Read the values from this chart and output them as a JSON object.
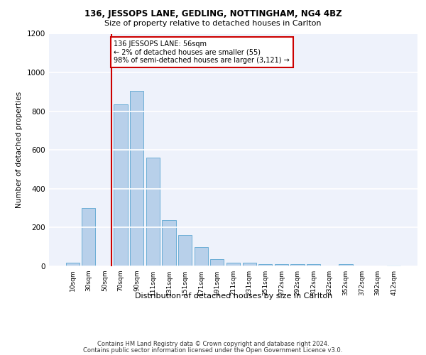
{
  "title1": "136, JESSOPS LANE, GEDLING, NOTTINGHAM, NG4 4BZ",
  "title2": "Size of property relative to detached houses in Carlton",
  "xlabel": "Distribution of detached houses by size in Carlton",
  "ylabel": "Number of detached properties",
  "categories": [
    "10sqm",
    "30sqm",
    "50sqm",
    "70sqm",
    "90sqm",
    "111sqm",
    "131sqm",
    "151sqm",
    "171sqm",
    "191sqm",
    "211sqm",
    "231sqm",
    "251sqm",
    "272sqm",
    "292sqm",
    "312sqm",
    "332sqm",
    "352sqm",
    "372sqm",
    "392sqm",
    "412sqm"
  ],
  "values": [
    20,
    300,
    0,
    835,
    905,
    560,
    240,
    160,
    100,
    35,
    20,
    20,
    10,
    10,
    10,
    10,
    0,
    10,
    0,
    0,
    5
  ],
  "bar_color": "#b8d0ea",
  "bar_edge_color": "#6baed6",
  "background_color": "#eef2fb",
  "grid_color": "#ffffff",
  "annotation_text": "136 JESSOPS LANE: 56sqm\n← 2% of detached houses are smaller (55)\n98% of semi-detached houses are larger (3,121) →",
  "annotation_box_color": "#ffffff",
  "annotation_box_edge": "#cc0000",
  "vline_x": 2.42,
  "vline_color": "#cc0000",
  "ylim": [
    0,
    1200
  ],
  "yticks": [
    0,
    200,
    400,
    600,
    800,
    1000,
    1200
  ],
  "footer1": "Contains HM Land Registry data © Crown copyright and database right 2024.",
  "footer2": "Contains public sector information licensed under the Open Government Licence v3.0."
}
